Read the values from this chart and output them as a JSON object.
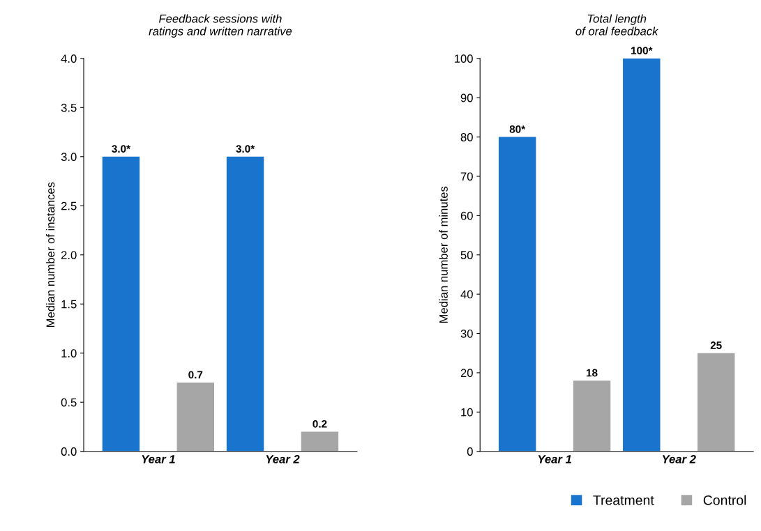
{
  "chart_data": [
    {
      "type": "bar",
      "title": "Feedback sessions with\nratings and written narrative",
      "ylabel": "Median number of instances",
      "categories": [
        "Year 1",
        "Year 2"
      ],
      "series": [
        {
          "color": "#1874cd",
          "values": [
            3.0,
            3.0
          ],
          "value_labels": [
            "3.0*",
            "3.0*"
          ]
        },
        {
          "color": "#a6a6a6",
          "values": [
            0.7,
            0.2
          ],
          "value_labels": [
            "0.7",
            "0.2"
          ]
        }
      ],
      "ylim": [
        0,
        4
      ],
      "yticks": [
        {
          "value": 0,
          "label": "0.0"
        },
        {
          "value": 0.5,
          "label": "0.5"
        },
        {
          "value": 1,
          "label": "1.0"
        },
        {
          "value": 1.5,
          "label": "1.5"
        },
        {
          "value": 2,
          "label": "2.0"
        },
        {
          "value": 2.5,
          "label": "2.5"
        },
        {
          "value": 3,
          "label": "3.0"
        },
        {
          "value": 3.5,
          "label": "3.5"
        },
        {
          "value": 4,
          "label": "4.0"
        }
      ],
      "grid": false,
      "legend": false
    },
    {
      "type": "bar",
      "title": "Total length\nof oral feedback",
      "ylabel": "Median number of minutes",
      "categories": [
        "Year 1",
        "Year 2"
      ],
      "series": [
        {
          "name": "Treatment",
          "color": "#1874cd",
          "values": [
            80,
            100
          ],
          "value_labels": [
            "80*",
            "100*"
          ]
        },
        {
          "name": "Control",
          "color": "#a6a6a6",
          "values": [
            18,
            25
          ],
          "value_labels": [
            "18",
            "25"
          ]
        }
      ],
      "ylim": [
        0,
        100
      ],
      "yticks": [
        0,
        10,
        20,
        30,
        40,
        50,
        60,
        70,
        80,
        90,
        100
      ],
      "grid": false,
      "legend": "bottom"
    }
  ]
}
